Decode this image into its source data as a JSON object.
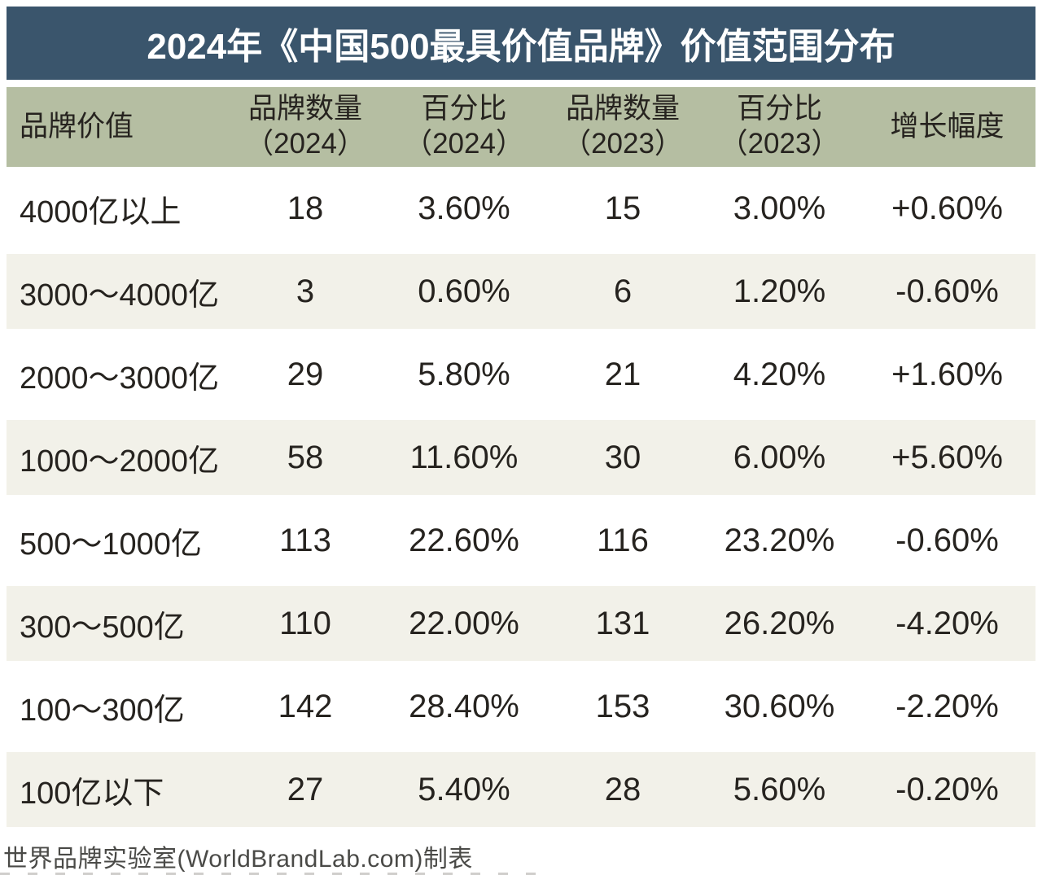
{
  "title": "2024年《中国500最具价值品牌》价值范围分布",
  "table": {
    "columns": [
      {
        "label": "品牌价值",
        "sub": ""
      },
      {
        "label": "品牌数量",
        "sub": "（2024）"
      },
      {
        "label": "百分比",
        "sub": "（2024）"
      },
      {
        "label": "品牌数量",
        "sub": "（2023）"
      },
      {
        "label": "百分比",
        "sub": "（2023）"
      },
      {
        "label": "增长幅度",
        "sub": ""
      }
    ],
    "rows": [
      [
        "4000亿以上",
        "18",
        "3.60%",
        "15",
        "3.00%",
        "+0.60%"
      ],
      [
        "3000～4000亿",
        "3",
        "0.60%",
        "6",
        "1.20%",
        "-0.60%"
      ],
      [
        "2000～3000亿",
        "29",
        "5.80%",
        "21",
        "4.20%",
        "+1.60%"
      ],
      [
        "1000～2000亿",
        "58",
        "11.60%",
        "30",
        "6.00%",
        "+5.60%"
      ],
      [
        "500～1000亿",
        "113",
        "22.60%",
        "116",
        "23.20%",
        "-0.60%"
      ],
      [
        "300～500亿",
        "110",
        "22.00%",
        "131",
        "26.20%",
        "-4.20%"
      ],
      [
        "100～300亿",
        "142",
        "28.40%",
        "153",
        "30.60%",
        "-2.20%"
      ],
      [
        "100亿以下",
        "27",
        "5.40%",
        "28",
        "5.60%",
        "-0.20%"
      ]
    ],
    "footer": "世界品牌实验室(WorldBrandLab.com)制表"
  },
  "colors": {
    "title_bar_bg": "#3a556c",
    "title_text": "#ffffff",
    "header_bg": "#b5bea2",
    "row_tint": "#f2f1e9",
    "body_text": "#26231f"
  },
  "chart_data": {
    "type": "table",
    "title": "2024年《中国500最具价值品牌》价值范围分布",
    "categories": [
      "4000亿以上",
      "3000～4000亿",
      "2000～3000亿",
      "1000～2000亿",
      "500～1000亿",
      "300～500亿",
      "100～300亿",
      "100亿以下"
    ],
    "series": [
      {
        "name": "品牌数量（2024）",
        "values": [
          18,
          3,
          29,
          58,
          113,
          110,
          142,
          27
        ]
      },
      {
        "name": "百分比（2024）",
        "values": [
          "3.60%",
          "0.60%",
          "5.80%",
          "11.60%",
          "22.60%",
          "22.00%",
          "28.40%",
          "5.40%"
        ]
      },
      {
        "name": "品牌数量（2023）",
        "values": [
          15,
          6,
          21,
          30,
          116,
          131,
          153,
          28
        ]
      },
      {
        "name": "百分比（2023）",
        "values": [
          "3.00%",
          "1.20%",
          "4.20%",
          "6.00%",
          "23.20%",
          "26.20%",
          "30.60%",
          "5.60%"
        ]
      },
      {
        "name": "增长幅度",
        "values": [
          "+0.60%",
          "-0.60%",
          "+1.60%",
          "+5.60%",
          "-0.60%",
          "-4.20%",
          "-2.20%",
          "-0.20%"
        ]
      }
    ],
    "source": "世界品牌实验室(WorldBrandLab.com)制表"
  }
}
